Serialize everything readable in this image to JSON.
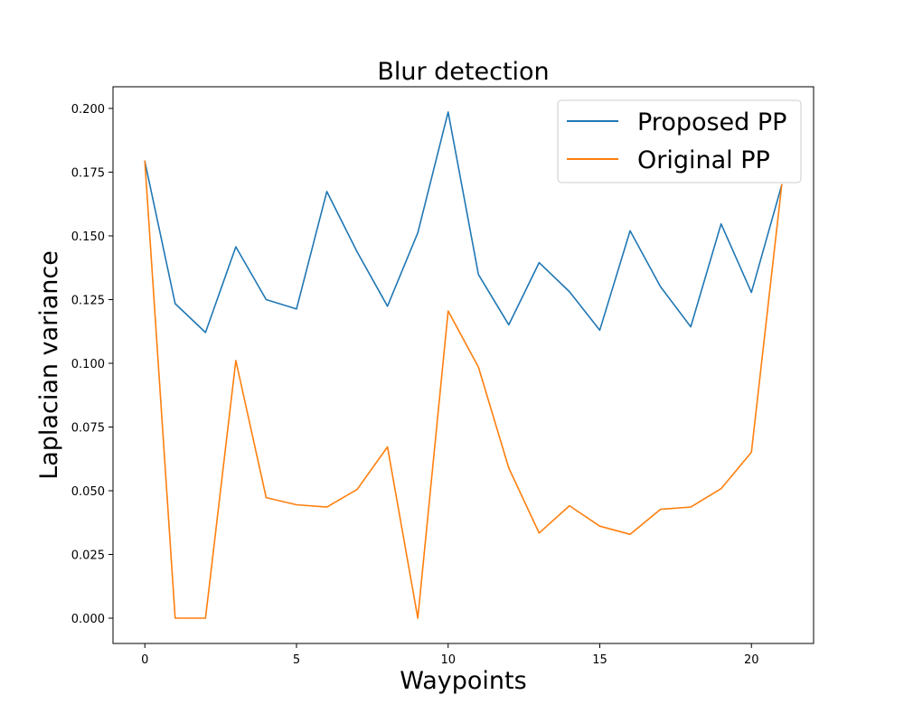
{
  "chart_data": {
    "type": "line",
    "title": "Blur detection",
    "xlabel": "Waypoints",
    "ylabel": "Laplacian variance",
    "xlim": [
      -1.05,
      22.05
    ],
    "ylim": [
      -0.00993,
      0.2085
    ],
    "xticks": [
      0,
      5,
      10,
      15,
      20
    ],
    "xtick_labels": [
      "0",
      "5",
      "10",
      "15",
      "20"
    ],
    "yticks": [
      0.0,
      0.025,
      0.05,
      0.075,
      0.1,
      0.125,
      0.15,
      0.175,
      0.2
    ],
    "ytick_labels": [
      "0.000",
      "0.025",
      "0.050",
      "0.075",
      "0.100",
      "0.125",
      "0.150",
      "0.175",
      "0.200"
    ],
    "grid": false,
    "legend_position": "top-right",
    "x": [
      0,
      1,
      2,
      3,
      4,
      5,
      6,
      7,
      8,
      9,
      10,
      11,
      12,
      13,
      14,
      15,
      16,
      17,
      18,
      19,
      20,
      21
    ],
    "series": [
      {
        "name": "Proposed PP",
        "color": "#1f77b4",
        "values": [
          0.1792,
          0.1234,
          0.1121,
          0.1457,
          0.125,
          0.1213,
          0.1674,
          0.1437,
          0.1224,
          0.1512,
          0.1986,
          0.1348,
          0.1151,
          0.1395,
          0.1281,
          0.113,
          0.152,
          0.1301,
          0.1143,
          0.1547,
          0.1278,
          0.17
        ]
      },
      {
        "name": "Original PP",
        "color": "#ff7f0e",
        "values": [
          0.1792,
          0.0,
          0.0,
          0.1011,
          0.0473,
          0.0445,
          0.0436,
          0.0505,
          0.0672,
          0.0,
          0.1205,
          0.0985,
          0.0589,
          0.0334,
          0.0441,
          0.0361,
          0.0329,
          0.0427,
          0.0436,
          0.0508,
          0.0651,
          0.17
        ]
      }
    ]
  }
}
